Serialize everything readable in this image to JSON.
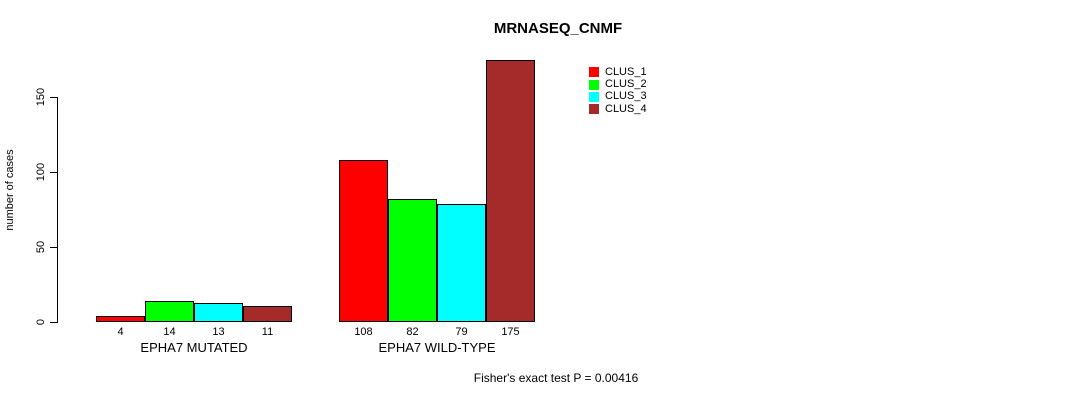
{
  "chart_data": {
    "type": "bar",
    "title": "MRNASEQ_CNMF",
    "ylabel": "number of cases",
    "xlabel": "",
    "categories": [
      "EPHA7 MUTATED",
      "EPHA7 WILD-TYPE"
    ],
    "series": [
      {
        "name": "CLUS_1",
        "color": "#FF0000",
        "values": [
          4,
          108
        ]
      },
      {
        "name": "CLUS_2",
        "color": "#00FF00",
        "values": [
          14,
          82
        ]
      },
      {
        "name": "CLUS_3",
        "color": "#00FFFF",
        "values": [
          13,
          79
        ]
      },
      {
        "name": "CLUS_4",
        "color": "#A52A2A",
        "values": [
          11,
          175
        ]
      }
    ],
    "bar_value_labels_shown": true,
    "yticks": [
      0,
      50,
      100,
      150
    ],
    "ylim": [
      0,
      175
    ],
    "grid": false,
    "legend_position": "top-right",
    "bar_border_color": "#000000",
    "text_color": "#000000",
    "background_color": "#FFFFFF",
    "annotation": "Fisher's exact test P = 0.00416"
  }
}
